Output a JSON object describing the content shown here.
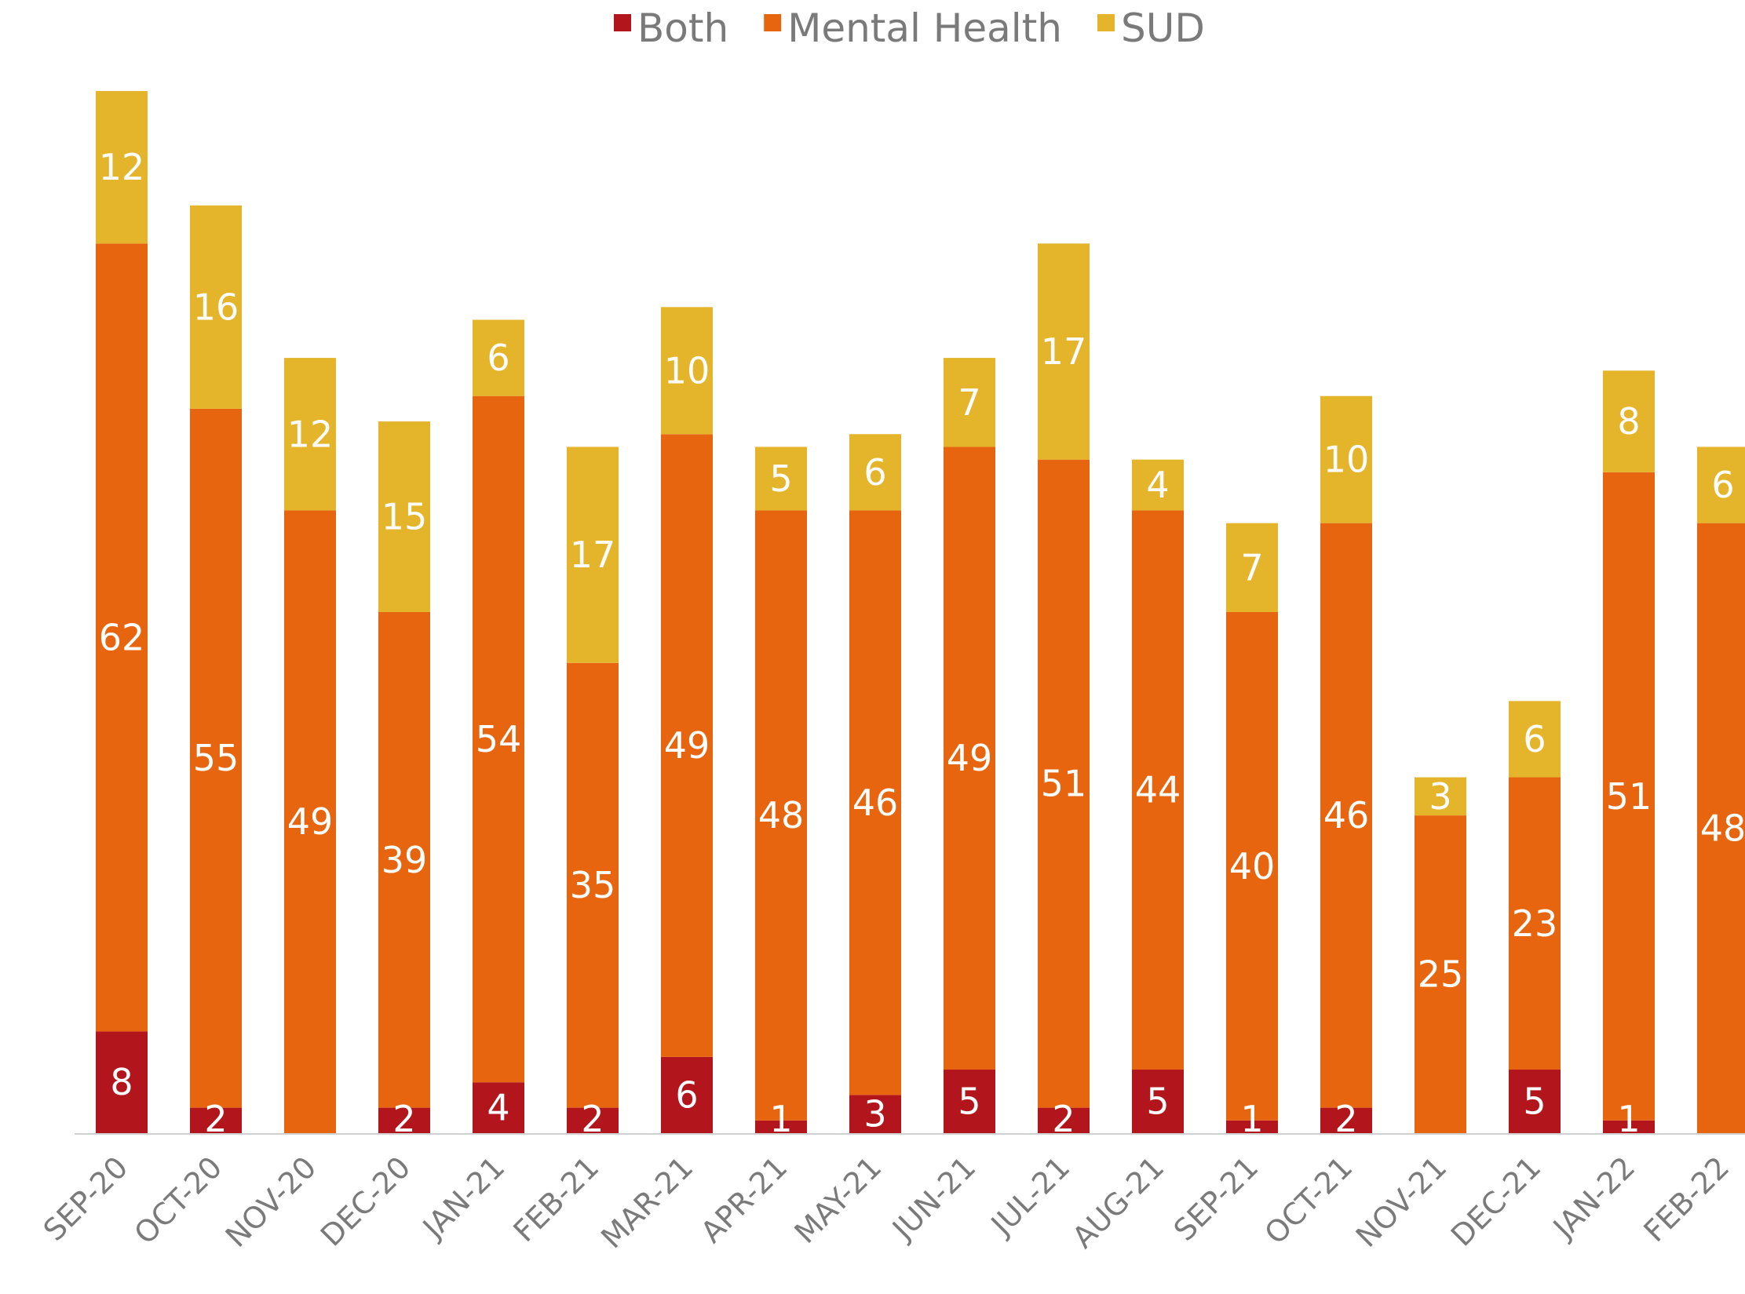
{
  "chart_data": {
    "type": "bar",
    "stacked": true,
    "categories": [
      "SEP-20",
      "OCT-20",
      "NOV-20",
      "DEC-20",
      "JAN-21",
      "FEB-21",
      "MAR-21",
      "APR-21",
      "MAY-21",
      "JUN-21",
      "JUL-21",
      "AUG-21",
      "SEP-21",
      "OCT-21",
      "NOV-21",
      "DEC-21",
      "JAN-22",
      "FEB-22"
    ],
    "series": [
      {
        "name": "Both",
        "color": "#b3151c",
        "values": [
          8,
          2,
          0,
          2,
          4,
          2,
          6,
          1,
          3,
          5,
          2,
          5,
          1,
          2,
          0,
          5,
          1,
          0
        ]
      },
      {
        "name": "Mental Health",
        "color": "#e8650f",
        "values": [
          62,
          55,
          49,
          39,
          54,
          35,
          49,
          48,
          46,
          49,
          51,
          44,
          40,
          46,
          25,
          23,
          51,
          48
        ]
      },
      {
        "name": "SUD",
        "color": "#e4b52a",
        "values": [
          12,
          16,
          12,
          15,
          6,
          17,
          10,
          5,
          6,
          7,
          17,
          4,
          7,
          10,
          3,
          6,
          8,
          6
        ]
      }
    ],
    "ylim": [
      0,
      82
    ],
    "legend_position": "top",
    "grid": false,
    "title": "",
    "xlabel": "",
    "ylabel": ""
  }
}
